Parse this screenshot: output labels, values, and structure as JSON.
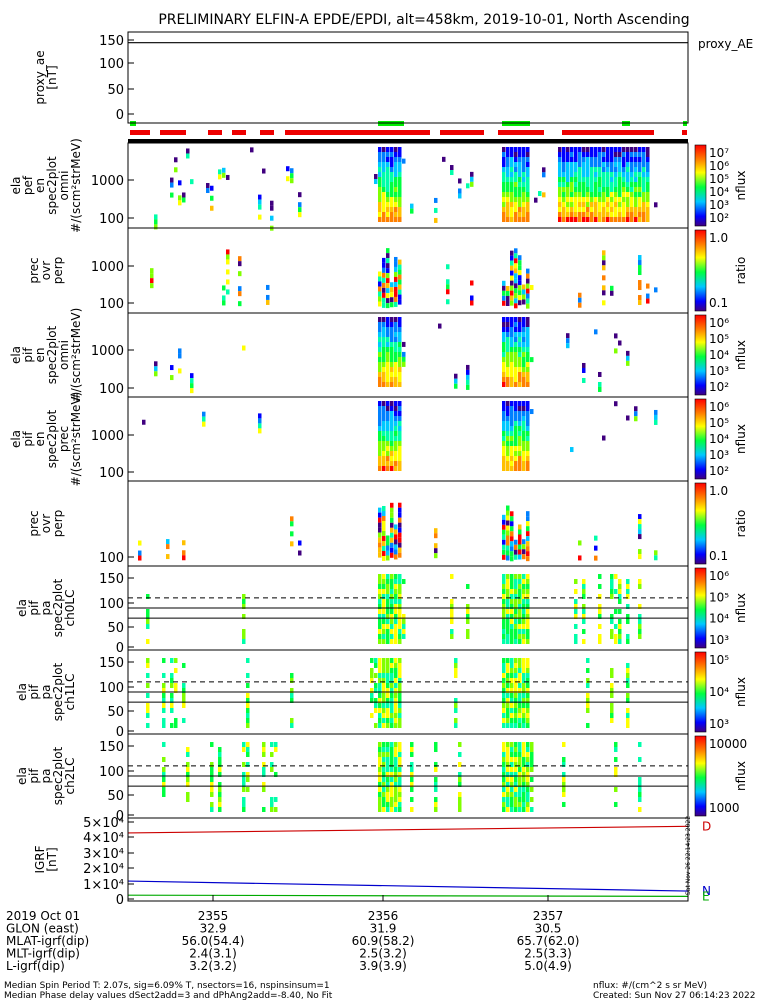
{
  "title": "PRELIMINARY ELFIN-A EPDE/EPDI, alt=458km, 2019-10-01, North Ascending",
  "chart_data": [
    {
      "type": "line",
      "panel": "proxy_ae",
      "ylabel": "proxy_ae [nT]",
      "legend": "proxy_AE",
      "yticks": [
        "150",
        "100",
        "50",
        "0"
      ],
      "ylim": [
        -15,
        155
      ],
      "series": [
        {
          "name": "proxy_AE",
          "values": [
            135,
            135
          ],
          "color": "#000000"
        }
      ]
    },
    {
      "type": "heatmap",
      "panel": "ela_pef_en_spec2plot_omni",
      "ylabel": "ela pef en spec2plot omni #/(scm²strMeV)",
      "yticks": [
        "1000",
        "100"
      ],
      "colorbar": {
        "label": "nflux",
        "ticks": [
          "10⁷",
          "10⁶",
          "10⁵",
          "10⁴",
          "10³",
          "10²"
        ]
      }
    },
    {
      "type": "heatmap",
      "panel": "ela_pef_prec_ovr_perp",
      "ylabel": "prec ovr perp",
      "yticks": [
        "1000",
        "100"
      ],
      "colorbar": {
        "label": "ratio",
        "ticks": [
          "1.0",
          "0.1"
        ]
      }
    },
    {
      "type": "heatmap",
      "panel": "ela_pif_en_spec2plot_omni",
      "ylabel": "ela pif en spec2plot omni #/(scm²strMeV)",
      "yticks": [
        "1000",
        "100"
      ],
      "colorbar": {
        "label": "nflux",
        "ticks": [
          "10⁶",
          "10⁵",
          "10⁴",
          "10³",
          "10²"
        ]
      }
    },
    {
      "type": "heatmap",
      "panel": "ela_pif_en_spec2plot_prec",
      "ylabel": "ela pif en spec2plot prec #/(scm²strMeV)",
      "yticks": [
        "1000",
        "100"
      ],
      "colorbar": {
        "label": "nflux",
        "ticks": [
          "10⁶",
          "10⁵",
          "10⁴",
          "10³",
          "10²"
        ]
      }
    },
    {
      "type": "heatmap",
      "panel": "ela_pif_prec_ovr_perp",
      "ylabel": "prec ovr perp",
      "yticks": [
        "100"
      ],
      "colorbar": {
        "label": "ratio",
        "ticks": [
          "1.0",
          "0.1"
        ]
      }
    },
    {
      "type": "heatmap",
      "panel": "ela_pif_pa_spec2plot_ch0LC",
      "ylabel": "ela pif pa spec2plot ch0LC",
      "yticks": [
        "150",
        "100",
        "50",
        "0"
      ],
      "colorbar": {
        "label": "nflux",
        "ticks": [
          "10⁶",
          "10⁵",
          "10⁴",
          "10³"
        ]
      }
    },
    {
      "type": "heatmap",
      "panel": "ela_pif_pa_spec2plot_ch1LC",
      "ylabel": "ela pif pa spec2plot ch1LC",
      "yticks": [
        "150",
        "100",
        "50",
        "0"
      ],
      "colorbar": {
        "label": "nflux",
        "ticks": [
          "10⁵",
          "10⁴",
          "10³"
        ]
      }
    },
    {
      "type": "heatmap",
      "panel": "ela_pif_pa_spec2plot_ch2LC",
      "ylabel": "ela pif pa spec2plot ch2LC",
      "yticks": [
        "150",
        "100",
        "50",
        "0"
      ],
      "colorbar": {
        "label": "nflux",
        "ticks": [
          "10000",
          "1000"
        ]
      }
    },
    {
      "type": "line",
      "panel": "igrf",
      "ylabel": "IGRF [nT]",
      "yticks": [
        "5×10⁴",
        "4×10⁴",
        "3×10⁴",
        "2×10⁴",
        "1×10⁴",
        "0"
      ],
      "ylim": [
        0,
        50000
      ],
      "series": [
        {
          "name": "D",
          "values": [
            41000,
            45000
          ],
          "color": "#cc0000"
        },
        {
          "name": "N",
          "values": [
            12000,
            6000
          ],
          "color": "#0000cc"
        },
        {
          "name": "E",
          "values": [
            3500,
            2800
          ],
          "color": "#00aa00"
        }
      ]
    }
  ],
  "xaxis": {
    "ticks": [
      "2355",
      "2356",
      "2357"
    ],
    "rows": [
      {
        "label": "2019 Oct 01",
        "values": [
          "2355",
          "2356",
          "2357"
        ]
      },
      {
        "label": "GLON (east)",
        "values": [
          "32.9",
          "31.9",
          "30.5"
        ]
      },
      {
        "label": "MLAT-igrf(dip)",
        "values": [
          "56.0(54.4)",
          "60.9(58.2)",
          "65.7(62.0)"
        ]
      },
      {
        "label": "MLT-igrf(dip)",
        "values": [
          "2.4(3.1)",
          "2.5(3.2)",
          "2.5(3.3)"
        ]
      },
      {
        "label": "L-igrf(dip)",
        "values": [
          "3.2(3.2)",
          "3.9(3.9)",
          "5.0(4.9)"
        ]
      }
    ]
  },
  "footer": {
    "line1": "Median Spin Period T: 2.07s, sig=6.09% T, nsectors=16, nspinsinsum=1",
    "line2": "Median Phase delay values dSect2add=3 and dPhAng2add=-8.40, No Fit",
    "nflux_note": "nflux: #/(cm^2 s sr MeV)",
    "created": "Created: Sun Nov 27 06:14:23 2022"
  },
  "side_stamp": "Sat Nov 26 22:14:23 2022",
  "colors": {
    "bar_green": "#00ee00",
    "bar_red": "#ee0000",
    "dashed_line": "#000000"
  }
}
